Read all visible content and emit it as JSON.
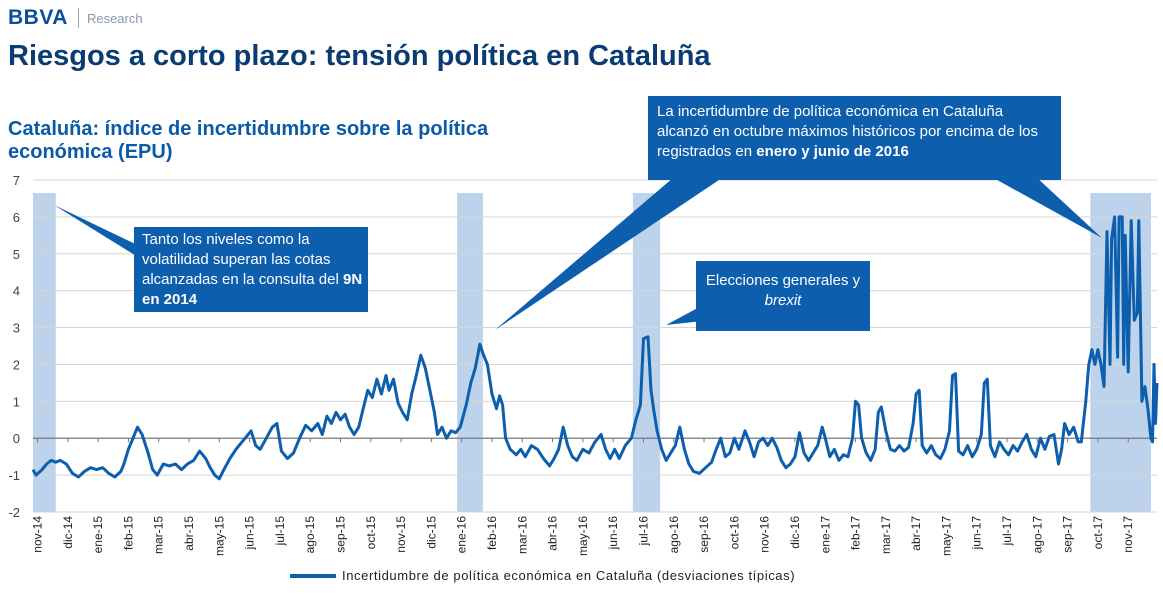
{
  "header": {
    "brand": "BBVA",
    "brand_sub": "Research",
    "title": "Riesgos a corto plazo: tensión política en Cataluña"
  },
  "chart_data": {
    "type": "line",
    "title": "Cataluña: índice de incertidumbre sobre la política económica (EPU)",
    "ylim": [
      -2,
      7
    ],
    "yticks": [
      -2,
      -1,
      0,
      1,
      2,
      3,
      4,
      5,
      6,
      7
    ],
    "x_range": [
      0,
      37.1
    ],
    "xticks": [
      "nov-14",
      "dic-14",
      "ene-15",
      "feb-15",
      "mar-15",
      "abr-15",
      "may-15",
      "jun-15",
      "jul-15",
      "ago-15",
      "sep-15",
      "oct-15",
      "nov-15",
      "dic-15",
      "ene-16",
      "feb-16",
      "mar-16",
      "abr-16",
      "may-16",
      "jun-16",
      "jul-16",
      "ago-16",
      "sep-16",
      "oct-16",
      "nov-16",
      "dic-16",
      "ene-17",
      "feb-17",
      "mar-17",
      "abr-17",
      "may-17",
      "jun-17",
      "jul-17",
      "ago-17",
      "sep-17",
      "oct-17",
      "nov-17"
    ],
    "highlight_bands": [
      [
        0.0,
        0.75
      ],
      [
        14.0,
        14.85
      ],
      [
        19.8,
        20.7
      ],
      [
        34.9,
        36.9
      ]
    ],
    "grid": true,
    "series": [
      {
        "name": "Incertidumbre de política económica en Cataluña (desviaciones típicas)",
        "color": "#0d5fae",
        "points": [
          [
            0,
            -0.85
          ],
          [
            0.1,
            -1.0
          ],
          [
            0.3,
            -0.85
          ],
          [
            0.45,
            -0.7
          ],
          [
            0.6,
            -0.6
          ],
          [
            0.75,
            -0.65
          ],
          [
            0.9,
            -0.6
          ],
          [
            1.1,
            -0.7
          ],
          [
            1.3,
            -0.95
          ],
          [
            1.5,
            -1.05
          ],
          [
            1.7,
            -0.9
          ],
          [
            1.9,
            -0.8
          ],
          [
            2.1,
            -0.85
          ],
          [
            2.3,
            -0.8
          ],
          [
            2.5,
            -0.95
          ],
          [
            2.7,
            -1.05
          ],
          [
            2.9,
            -0.9
          ],
          [
            3.0,
            -0.7
          ],
          [
            3.15,
            -0.3
          ],
          [
            3.3,
            0.0
          ],
          [
            3.45,
            0.3
          ],
          [
            3.6,
            0.1
          ],
          [
            3.8,
            -0.4
          ],
          [
            3.95,
            -0.85
          ],
          [
            4.1,
            -1.0
          ],
          [
            4.3,
            -0.7
          ],
          [
            4.5,
            -0.75
          ],
          [
            4.7,
            -0.7
          ],
          [
            4.9,
            -0.85
          ],
          [
            5.1,
            -0.7
          ],
          [
            5.3,
            -0.6
          ],
          [
            5.5,
            -0.35
          ],
          [
            5.7,
            -0.55
          ],
          [
            5.85,
            -0.8
          ],
          [
            6.0,
            -1.0
          ],
          [
            6.15,
            -1.1
          ],
          [
            6.3,
            -0.85
          ],
          [
            6.5,
            -0.55
          ],
          [
            6.7,
            -0.3
          ],
          [
            6.9,
            -0.1
          ],
          [
            7.05,
            0.05
          ],
          [
            7.2,
            0.2
          ],
          [
            7.35,
            -0.2
          ],
          [
            7.5,
            -0.3
          ],
          [
            7.7,
            0.0
          ],
          [
            7.9,
            0.3
          ],
          [
            8.05,
            0.4
          ],
          [
            8.2,
            -0.35
          ],
          [
            8.4,
            -0.55
          ],
          [
            8.6,
            -0.4
          ],
          [
            8.8,
            0.0
          ],
          [
            9.0,
            0.35
          ],
          [
            9.2,
            0.2
          ],
          [
            9.4,
            0.4
          ],
          [
            9.55,
            0.1
          ],
          [
            9.7,
            0.6
          ],
          [
            9.85,
            0.4
          ],
          [
            10.0,
            0.7
          ],
          [
            10.15,
            0.5
          ],
          [
            10.3,
            0.65
          ],
          [
            10.45,
            0.3
          ],
          [
            10.6,
            0.1
          ],
          [
            10.75,
            0.3
          ],
          [
            10.9,
            0.8
          ],
          [
            11.05,
            1.3
          ],
          [
            11.2,
            1.1
          ],
          [
            11.35,
            1.6
          ],
          [
            11.5,
            1.2
          ],
          [
            11.65,
            1.7
          ],
          [
            11.75,
            1.3
          ],
          [
            11.9,
            1.6
          ],
          [
            12.05,
            0.95
          ],
          [
            12.2,
            0.7
          ],
          [
            12.35,
            0.5
          ],
          [
            12.5,
            1.2
          ],
          [
            12.65,
            1.7
          ],
          [
            12.8,
            2.25
          ],
          [
            12.95,
            1.9
          ],
          [
            13.1,
            1.3
          ],
          [
            13.25,
            0.7
          ],
          [
            13.35,
            0.1
          ],
          [
            13.5,
            0.3
          ],
          [
            13.65,
            0.0
          ],
          [
            13.8,
            0.2
          ],
          [
            13.95,
            0.15
          ],
          [
            14.1,
            0.3
          ],
          [
            14.3,
            0.9
          ],
          [
            14.45,
            1.5
          ],
          [
            14.6,
            1.9
          ],
          [
            14.75,
            2.55
          ],
          [
            14.85,
            2.3
          ],
          [
            15.0,
            2.0
          ],
          [
            15.15,
            1.2
          ],
          [
            15.3,
            0.8
          ],
          [
            15.4,
            1.15
          ],
          [
            15.5,
            0.9
          ],
          [
            15.6,
            0.0
          ],
          [
            15.75,
            -0.3
          ],
          [
            15.95,
            -0.45
          ],
          [
            16.1,
            -0.3
          ],
          [
            16.25,
            -0.5
          ],
          [
            16.45,
            -0.2
          ],
          [
            16.65,
            -0.3
          ],
          [
            16.85,
            -0.55
          ],
          [
            17.05,
            -0.75
          ],
          [
            17.2,
            -0.55
          ],
          [
            17.35,
            -0.3
          ],
          [
            17.5,
            0.3
          ],
          [
            17.65,
            -0.2
          ],
          [
            17.8,
            -0.5
          ],
          [
            17.95,
            -0.6
          ],
          [
            18.15,
            -0.3
          ],
          [
            18.35,
            -0.4
          ],
          [
            18.55,
            -0.1
          ],
          [
            18.75,
            0.1
          ],
          [
            18.9,
            -0.3
          ],
          [
            19.05,
            -0.55
          ],
          [
            19.2,
            -0.3
          ],
          [
            19.35,
            -0.55
          ],
          [
            19.55,
            -0.2
          ],
          [
            19.75,
            0.0
          ],
          [
            19.9,
            0.5
          ],
          [
            20.05,
            0.9
          ],
          [
            20.15,
            2.7
          ],
          [
            20.3,
            2.75
          ],
          [
            20.4,
            1.3
          ],
          [
            20.5,
            0.7
          ],
          [
            20.6,
            0.2
          ],
          [
            20.75,
            -0.3
          ],
          [
            20.9,
            -0.6
          ],
          [
            21.05,
            -0.4
          ],
          [
            21.2,
            -0.2
          ],
          [
            21.35,
            0.3
          ],
          [
            21.5,
            -0.3
          ],
          [
            21.65,
            -0.7
          ],
          [
            21.8,
            -0.9
          ],
          [
            22.0,
            -0.95
          ],
          [
            22.2,
            -0.8
          ],
          [
            22.4,
            -0.65
          ],
          [
            22.55,
            -0.3
          ],
          [
            22.7,
            0.0
          ],
          [
            22.85,
            -0.5
          ],
          [
            23.0,
            -0.4
          ],
          [
            23.15,
            0.0
          ],
          [
            23.3,
            -0.3
          ],
          [
            23.5,
            0.2
          ],
          [
            23.65,
            -0.1
          ],
          [
            23.8,
            -0.5
          ],
          [
            23.95,
            -0.1
          ],
          [
            24.1,
            0.0
          ],
          [
            24.25,
            -0.2
          ],
          [
            24.4,
            0.0
          ],
          [
            24.55,
            -0.25
          ],
          [
            24.7,
            -0.6
          ],
          [
            24.85,
            -0.8
          ],
          [
            25.0,
            -0.7
          ],
          [
            25.15,
            -0.5
          ],
          [
            25.3,
            0.15
          ],
          [
            25.45,
            -0.4
          ],
          [
            25.6,
            -0.6
          ],
          [
            25.75,
            -0.4
          ],
          [
            25.9,
            -0.2
          ],
          [
            26.05,
            0.3
          ],
          [
            26.15,
            0.0
          ],
          [
            26.3,
            -0.5
          ],
          [
            26.45,
            -0.3
          ],
          [
            26.6,
            -0.6
          ],
          [
            26.75,
            -0.45
          ],
          [
            26.9,
            -0.5
          ],
          [
            27.05,
            0.0
          ],
          [
            27.15,
            1.0
          ],
          [
            27.25,
            0.9
          ],
          [
            27.35,
            0.0
          ],
          [
            27.5,
            -0.4
          ],
          [
            27.65,
            -0.6
          ],
          [
            27.8,
            -0.3
          ],
          [
            27.9,
            0.7
          ],
          [
            28.0,
            0.85
          ],
          [
            28.15,
            0.2
          ],
          [
            28.3,
            -0.3
          ],
          [
            28.45,
            -0.35
          ],
          [
            28.6,
            -0.2
          ],
          [
            28.75,
            -0.35
          ],
          [
            28.9,
            -0.25
          ],
          [
            29.05,
            0.4
          ],
          [
            29.15,
            1.2
          ],
          [
            29.25,
            1.3
          ],
          [
            29.35,
            -0.2
          ],
          [
            29.5,
            -0.4
          ],
          [
            29.65,
            -0.2
          ],
          [
            29.8,
            -0.45
          ],
          [
            29.95,
            -0.55
          ],
          [
            30.1,
            -0.3
          ],
          [
            30.25,
            0.2
          ],
          [
            30.35,
            1.7
          ],
          [
            30.45,
            1.75
          ],
          [
            30.55,
            -0.35
          ],
          [
            30.7,
            -0.45
          ],
          [
            30.85,
            -0.2
          ],
          [
            31.0,
            -0.5
          ],
          [
            31.15,
            -0.3
          ],
          [
            31.3,
            0.1
          ],
          [
            31.4,
            1.5
          ],
          [
            31.5,
            1.6
          ],
          [
            31.6,
            -0.2
          ],
          [
            31.75,
            -0.5
          ],
          [
            31.9,
            -0.1
          ],
          [
            32.05,
            -0.3
          ],
          [
            32.2,
            -0.45
          ],
          [
            32.35,
            -0.2
          ],
          [
            32.5,
            -0.35
          ],
          [
            32.65,
            -0.1
          ],
          [
            32.8,
            0.1
          ],
          [
            32.95,
            -0.3
          ],
          [
            33.1,
            -0.5
          ],
          [
            33.25,
            0.0
          ],
          [
            33.4,
            -0.3
          ],
          [
            33.55,
            0.05
          ],
          [
            33.7,
            0.1
          ],
          [
            33.85,
            -0.7
          ],
          [
            33.95,
            -0.3
          ],
          [
            34.05,
            0.4
          ],
          [
            34.2,
            0.1
          ],
          [
            34.35,
            0.3
          ],
          [
            34.5,
            -0.1
          ],
          [
            34.6,
            -0.1
          ],
          [
            34.75,
            1.0
          ],
          [
            34.85,
            2.0
          ],
          [
            34.95,
            2.4
          ],
          [
            35.05,
            2.0
          ],
          [
            35.15,
            2.4
          ],
          [
            35.25,
            2.0
          ],
          [
            35.35,
            1.4
          ],
          [
            35.45,
            5.6
          ],
          [
            35.55,
            2.0
          ],
          [
            35.6,
            5.4
          ],
          [
            35.7,
            6.0
          ],
          [
            35.8,
            2.2
          ],
          [
            35.85,
            6.0
          ],
          [
            35.95,
            6.0
          ],
          [
            36.0,
            2.0
          ],
          [
            36.05,
            5.5
          ],
          [
            36.15,
            1.8
          ],
          [
            36.25,
            5.9
          ],
          [
            36.35,
            3.2
          ],
          [
            36.45,
            3.4
          ],
          [
            36.5,
            5.9
          ],
          [
            36.6,
            1.0
          ],
          [
            36.7,
            1.4
          ],
          [
            36.8,
            0.8
          ],
          [
            36.9,
            0.0
          ],
          [
            36.95,
            -0.1
          ],
          [
            37.0,
            2.0
          ],
          [
            37.05,
            0.4
          ],
          [
            37.1,
            1.5
          ]
        ]
      }
    ]
  },
  "callouts": {
    "c1": {
      "t1": "Tanto los niveles como la volatilidad superan las cotas alcanzadas en la consulta del",
      "b1": "9N en 2014"
    },
    "c2": {
      "t1": "Elecciones generales y",
      "i1": "brexit"
    },
    "c3": {
      "t1": "La incertidumbre de política económica en Cataluña alcanzó en octubre máximos históricos por encima de los registrados en",
      "b1": "enero y junio de 2016"
    }
  },
  "legend": {
    "label": "Incertidumbre de política económica en Cataluña (desviaciones típicas)"
  }
}
